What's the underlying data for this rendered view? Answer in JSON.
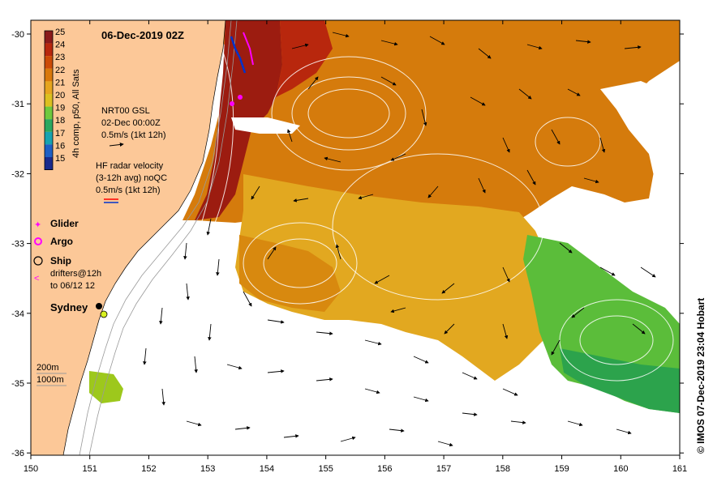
{
  "title": "06-Dec-2019 02Z",
  "credit": "© IMOS 07-Dec-2019 23:04 Hobart",
  "colorbar": {
    "label": "4h comp, p50, All Sats",
    "values": [
      "25",
      "24",
      "23",
      "22",
      "21",
      "20",
      "19",
      "18",
      "17",
      "16",
      "15"
    ],
    "colors": [
      "#8a1a1a",
      "#b8270d",
      "#cc4a06",
      "#d9780a",
      "#e6a51e",
      "#dcc020",
      "#6fc93e",
      "#2aa860",
      "#18a3b0",
      "#1f5fc4",
      "#1a2a8c"
    ]
  },
  "annotations": {
    "gsl_title": "NRT00 GSL",
    "gsl_date": "02-Dec 00:00Z",
    "gsl_scale": "0.5m/s (1kt 12h)",
    "hf_title": "HF radar velocity",
    "hf_avg": "(3-12h avg) noQC",
    "hf_scale": "0.5m/s (1kt 12h)"
  },
  "legend": {
    "glider": "Glider",
    "argo": "Argo",
    "ship": "Ship",
    "drifters_1": "drifters@12h",
    "drifters_2": "to 06/12 12"
  },
  "places": {
    "sydney": "Sydney"
  },
  "depth_labels": [
    "200m",
    "1000m"
  ],
  "axes": {
    "x_ticks": [
      "150",
      "151",
      "152",
      "153",
      "154",
      "155",
      "156",
      "157",
      "158",
      "159",
      "160",
      "161"
    ],
    "y_ticks": [
      "-30",
      "-31",
      "-32",
      "-33",
      "-34",
      "-35",
      "-36"
    ]
  },
  "colors": {
    "land": "#fcc898",
    "warm_core": "#9c1c10",
    "orange": "#d9780a",
    "yellow": "#e6a51e",
    "green": "#58bd3a",
    "background": "#ffffff"
  }
}
